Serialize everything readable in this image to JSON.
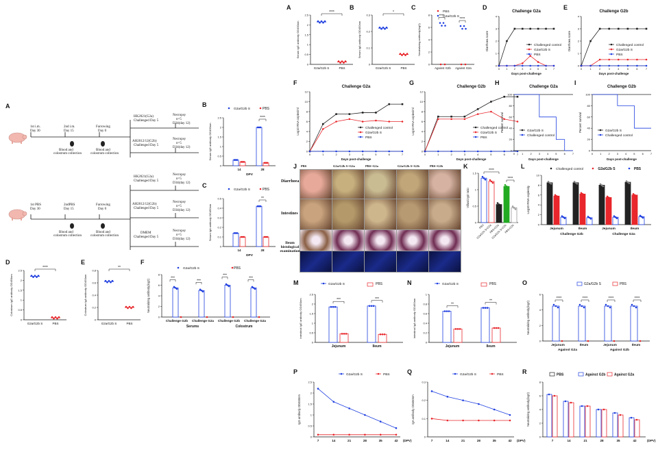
{
  "labels": {
    "A1": "A",
    "B1": "B",
    "C1": "C",
    "D1": "D",
    "E1": "E",
    "F1": "F",
    "G1": "G",
    "H1": "H",
    "I1": "I",
    "J": "J",
    "K": "K",
    "L": "L",
    "A2": "A",
    "B2": "B",
    "C2": "C",
    "D2": "D",
    "E2": "E",
    "F2": "F",
    "M": "M",
    "N": "N",
    "O": "O",
    "P": "P",
    "Q": "Q",
    "R": "R"
  },
  "colors": {
    "blue": "#1f3fe0",
    "red": "#e8262b",
    "black": "#222222",
    "green": "#22aa22"
  },
  "common": {
    "g2a_s": "G2a/G2b S",
    "pbs": "PBS",
    "challenged_control": "Challenged control",
    "dpv": "DPV",
    "dpv_paren": "(DPV)",
    "days_post": "Days post-challenge",
    "significance": {
      "s4": "****",
      "s3": "***",
      "s2": "**",
      "s1": "*"
    }
  },
  "timeline": {
    "row1": {
      "im1": "1st i.m.",
      "d30": "Day 30",
      "im2": "2nd i.m.",
      "d15": "Day 15",
      "farrow": "Farrowing",
      "d0": "Day 0",
      "blood": "Blood and",
      "colostrum": "colostrum collection",
      "hk": "HK2021(G2a)",
      "hk_ch": "Challenged Day 5",
      "ah": "AH2012/12(G2b)",
      "ah_ch": "Challenged Day 5",
      "nec": "Necropsy",
      "n5": "n=5",
      "d34": "D34(day 12)"
    },
    "row2": {
      "pbs1": "1st PBS",
      "d30": "Day 30",
      "pbs2": "2ndPBS",
      "d15": "Day 15",
      "farrow": "Farrowing",
      "d0": "Day 0",
      "blood": "Blood and",
      "colostrum": "colostrum collection",
      "hk": "HK2021(G2a)",
      "hk_ch": "Challenged Day 5",
      "ah": "AH2012/12(G2b)",
      "ah_ch": "Challenged Day 5",
      "dmem": "DMEM",
      "dmem_ch": "Challenged Day 5",
      "nec": "Necropsy",
      "n5": "n=5",
      "d34": "D34(day 12)"
    }
  },
  "panelA1": {
    "ylabel": "Serum IgG antibody OD450nm",
    "cats": [
      "G2a/G2b S",
      "PBS"
    ],
    "values": [
      2.15,
      0.12
    ]
  },
  "panelB1": {
    "ylabel": "Serum IgA antibody OD450nm",
    "cats": [
      "G2a/G2b S",
      "PBS"
    ],
    "values": [
      0.22,
      0.06
    ]
  },
  "panelC1": {
    "ylabel": "Neutralizing antibody(log2)",
    "cats": [
      "Against G2b",
      "Against G2a"
    ],
    "g2a": [
      6.5,
      6.0
    ],
    "pbs": [
      0,
      0
    ]
  },
  "panelD1": {
    "title": "Challenge G2a",
    "ylabel": "Diarrhoea score",
    "x": [
      0,
      1,
      2,
      3,
      4,
      5,
      6,
      7
    ],
    "control": [
      0,
      2,
      3,
      3,
      3,
      3,
      3,
      3
    ],
    "s": [
      0,
      0,
      0,
      0.2,
      0.8,
      0.3,
      0,
      0
    ],
    "pbs": [
      0,
      0,
      0,
      0,
      0,
      0,
      0,
      0
    ]
  },
  "panelE1": {
    "title": "Challenge G2b",
    "ylabel": "Diarrhoea score",
    "x": [
      0,
      1,
      2,
      3,
      4,
      5,
      6,
      7
    ],
    "control": [
      0,
      2,
      3,
      3,
      3,
      3,
      3,
      3
    ],
    "s": [
      0,
      0,
      0.5,
      0.5,
      0.5,
      0.5,
      0.5,
      0.5
    ],
    "pbs": [
      0,
      0,
      0,
      0,
      0,
      0,
      0,
      0
    ]
  },
  "panelF1": {
    "title": "Challenge G2a",
    "ylabel": "Log10 RNA copies/ml",
    "x": [
      0,
      1,
      2,
      3,
      4,
      5,
      6,
      7
    ],
    "control": [
      0,
      5.5,
      7.5,
      7.5,
      7.8,
      7.8,
      9.5,
      9.5
    ],
    "s": [
      0,
      4.5,
      6,
      6.5,
      6.0,
      6.2,
      6,
      6
    ],
    "pbs": [
      0,
      0,
      0,
      0,
      0,
      0,
      0,
      0
    ]
  },
  "panelG1": {
    "title": "Challenge G2b",
    "ylabel": "Log10 RNA copies/ml",
    "x": [
      0,
      1,
      2,
      3,
      4,
      5,
      6,
      7
    ],
    "control": [
      0,
      7,
      7,
      7,
      8.5,
      10,
      11,
      11
    ],
    "s": [
      0,
      6.5,
      6.5,
      6.5,
      7.5,
      8,
      6.5,
      6
    ],
    "pbs": [
      0,
      0,
      0,
      0,
      0,
      0,
      0,
      0
    ]
  },
  "panelH1": {
    "title": "Challenge G2a",
    "ylabel": "Percent survival",
    "legend": [
      "G2a/G2b S",
      "Challenged control"
    ]
  },
  "panelI1": {
    "title": "Challenge G2b",
    "ylabel": "Percent survival",
    "legend": [
      "G2a/G2b S",
      "Challenged control"
    ]
  },
  "panelJ": {
    "cols": [
      "PBS",
      "G2a/G2b S+G2a",
      "PBS+G2a",
      "G2a/G2b S+G2b",
      "PBS+G2b"
    ],
    "rows": [
      "Diarrhoea",
      "Intestines",
      "Ileum histological examination"
    ]
  },
  "panelK": {
    "ylabel": "Villus/crypt ratio",
    "cats": [
      "PBS",
      "G2a/G2b S+G2a",
      "PBS+G2a",
      "G2a/G2b S+G2b",
      "PBS+G2b"
    ],
    "values": [
      1.35,
      1.25,
      0.55,
      1.1,
      0.45
    ]
  },
  "panelL": {
    "ylabel": "Log10 RNA copies/g",
    "legend": [
      "Challenged control",
      "G2a/G2b S",
      "PBS"
    ],
    "cats": [
      "Jejunum",
      "Ileum",
      "Jejunum",
      "Ileum"
    ],
    "groups": [
      "Challenge G2b",
      "Challenge G2a"
    ]
  },
  "panelB2": {
    "ylabel": "Serum IgG antibody OD450nm",
    "x": [
      "14",
      "28"
    ],
    "s": [
      0.3,
      2.0
    ],
    "pbs": [
      0.2,
      0.15
    ]
  },
  "panelC2": {
    "ylabel": "Serum IgA antibody OD450nm",
    "x": [
      "14",
      "28"
    ],
    "s": [
      0.14,
      0.42
    ],
    "pbs": [
      0.1,
      0.1
    ]
  },
  "panelD2": {
    "ylabel": "Colostrum IgG antibody OD450nm",
    "cats": [
      "G2a/G2b S",
      "PBS"
    ],
    "values": [
      2.2,
      0.1
    ]
  },
  "panelE2": {
    "ylabel": "Colostrum IgA antibody OD450nm",
    "cats": [
      "G2a/G2b S",
      "PBS"
    ],
    "values": [
      0.62,
      0.2
    ]
  },
  "panelF2": {
    "ylabel": "Neutralizing antibody(log2)",
    "cats": [
      "Challenge G2b",
      "Challenge G2a",
      "Challenge G2b",
      "Challenge G2a"
    ],
    "groups": [
      "Serums",
      "Colostrum"
    ],
    "s": [
      5.5,
      5.0,
      6.0,
      5.5
    ]
  },
  "panelM": {
    "ylabel": "Intestinal IgG antibody OD450nm",
    "cats": [
      "Jejunum",
      "Ileum"
    ],
    "s": [
      1.85,
      1.9
    ],
    "pbs": [
      0.45,
      0.42
    ]
  },
  "panelN": {
    "ylabel": "Intestinal IgA antibody OD450nm",
    "cats": [
      "Jejunum",
      "Ileum"
    ],
    "s": [
      0.65,
      0.72
    ],
    "pbs": [
      0.28,
      0.3
    ]
  },
  "panelO": {
    "ylabel": "Neutralizing antibody(log2)",
    "cats": [
      "Jejunum",
      "Ileum",
      "Jejunum",
      "Ileum"
    ],
    "groups": [
      "Against G2a",
      "Against G2b"
    ],
    "s": [
      4.5,
      4.5,
      4.5,
      4.5
    ]
  },
  "panelP": {
    "ylabel": "IgG antibody OD450nm",
    "x": [
      "7",
      "14",
      "21",
      "28",
      "35",
      "42"
    ],
    "s": [
      2.2,
      1.6,
      1.3,
      1.0,
      0.7,
      0.4
    ],
    "pbs": [
      0.1,
      0.1,
      0.1,
      0.1,
      0.1,
      0.1
    ],
    "ylim": [
      0,
      2.5
    ]
  },
  "panelQ": {
    "ylabel": "IgA antibody OD450nm",
    "x": [
      "7",
      "14",
      "21",
      "28",
      "35",
      "42"
    ],
    "s": [
      0.25,
      0.22,
      0.2,
      0.18,
      0.15,
      0.12
    ],
    "pbs": [
      0.1,
      0.09,
      0.09,
      0.09,
      0.09,
      0.09
    ],
    "ylim": [
      0,
      0.3
    ]
  },
  "panelR": {
    "ylabel": "Neutralizing antibody(log2)",
    "legend": [
      "PBS",
      "Against G2b",
      "Against G2a"
    ],
    "x": [
      "7",
      "14",
      "21",
      "28",
      "35",
      "42"
    ],
    "g2b": [
      6.2,
      5.2,
      4.5,
      4.0,
      3.5,
      2.8
    ],
    "g2a": [
      6.0,
      5.0,
      4.5,
      4.0,
      3.2,
      2.5
    ]
  },
  "chart_data": [
    {
      "type": "line",
      "title": "Challenge G2a",
      "xlabel": "Days post-challenge",
      "ylabel": "Log10 RNA copies/ml",
      "x": [
        0,
        1,
        2,
        3,
        4,
        5,
        6,
        7
      ],
      "series": [
        {
          "name": "Challenged control",
          "values": [
            0,
            5.5,
            7.5,
            7.5,
            7.8,
            7.8,
            9.5,
            9.5
          ]
        },
        {
          "name": "G2a/G2b S",
          "values": [
            0,
            4.5,
            6,
            6.5,
            6,
            6.2,
            6,
            6
          ]
        },
        {
          "name": "PBS",
          "values": [
            0,
            0,
            0,
            0,
            0,
            0,
            0,
            0
          ]
        }
      ]
    },
    {
      "type": "line",
      "title": "",
      "xlabel": "(DPV)",
      "ylabel": "IgG antibody OD450nm",
      "x": [
        7,
        14,
        21,
        28,
        35,
        42
      ],
      "series": [
        {
          "name": "G2a/G2b S",
          "values": [
            2.2,
            1.6,
            1.3,
            1.0,
            0.7,
            0.4
          ]
        },
        {
          "name": "PBS",
          "values": [
            0.1,
            0.1,
            0.1,
            0.1,
            0.1,
            0.1
          ]
        }
      ],
      "ylim": [
        0,
        2.5
      ]
    }
  ]
}
